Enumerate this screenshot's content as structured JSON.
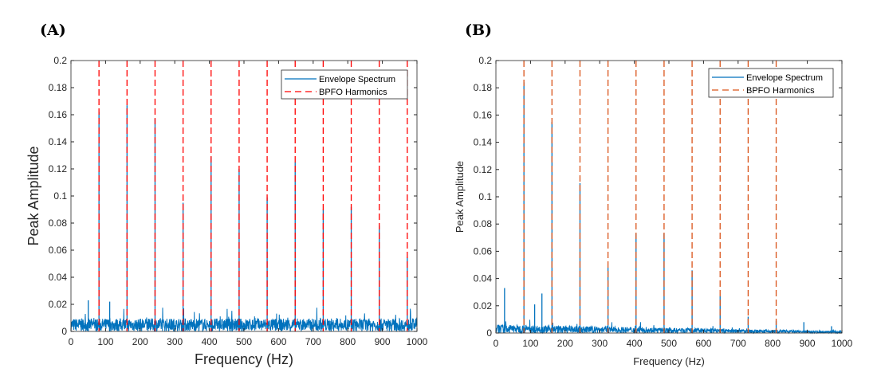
{
  "chart_data": [
    {
      "type": "line",
      "panel_label": "(A)",
      "xlabel": "Frequency (Hz)",
      "ylabel": "Peak Amplitude",
      "xlim": [
        0,
        1000
      ],
      "ylim": [
        0,
        0.2
      ],
      "xticks": [
        "0",
        "100",
        "200",
        "300",
        "400",
        "500",
        "600",
        "700",
        "800",
        "900",
        "1000"
      ],
      "yticks": [
        "0",
        "0.02",
        "0.04",
        "0.06",
        "0.08",
        "0.1",
        "0.12",
        "0.14",
        "0.16",
        "0.18",
        "0.2"
      ],
      "legend": {
        "position": "top-right",
        "entries": [
          "Envelope Spectrum",
          "BPFO Harmonics"
        ]
      },
      "harmonic_color": "#ff0000",
      "spectrum_color": "#0072bd",
      "noise_level": 0.006,
      "harmonics": [
        81,
        162,
        243,
        324,
        405,
        486,
        567,
        648,
        729,
        810,
        891,
        972
      ],
      "peaks": [
        [
          81,
          0.162
        ],
        [
          162,
          0.167
        ],
        [
          243,
          0.157
        ],
        [
          324,
          0.095
        ],
        [
          405,
          0.129
        ],
        [
          486,
          0.12
        ],
        [
          567,
          0.099
        ],
        [
          648,
          0.125
        ],
        [
          729,
          0.09
        ],
        [
          810,
          0.092
        ],
        [
          891,
          0.078
        ],
        [
          972,
          0.055
        ],
        [
          50,
          0.023
        ],
        [
          112,
          0.022
        ]
      ]
    },
    {
      "type": "line",
      "panel_label": "(B)",
      "xlabel": "Frequency (Hz)",
      "ylabel": "Peak Amplitude",
      "xlim": [
        0,
        1000
      ],
      "ylim": [
        0,
        0.2
      ],
      "xticks": [
        "0",
        "100",
        "200",
        "300",
        "400",
        "500",
        "600",
        "700",
        "800",
        "900",
        "1000"
      ],
      "yticks": [
        "0",
        "0.02",
        "0.04",
        "0.06",
        "0.08",
        "0.1",
        "0.12",
        "0.14",
        "0.16",
        "0.18",
        "0.2"
      ],
      "legend": {
        "position": "top-right",
        "entries": [
          "Envelope Spectrum",
          "BPFO Harmonics"
        ]
      },
      "harmonic_color": "#d95319",
      "spectrum_color": "#0072bd",
      "noise_level": 0.003,
      "harmonics": [
        81,
        162,
        243,
        324,
        405,
        486,
        567,
        648,
        729,
        810
      ],
      "peaks": [
        [
          81,
          0.184
        ],
        [
          162,
          0.155
        ],
        [
          243,
          0.11
        ],
        [
          324,
          0.048
        ],
        [
          405,
          0.073
        ],
        [
          486,
          0.073
        ],
        [
          567,
          0.046
        ],
        [
          648,
          0.027
        ],
        [
          729,
          0.012
        ],
        [
          810,
          0.009
        ],
        [
          890,
          0.008
        ],
        [
          970,
          0.005
        ],
        [
          25,
          0.033
        ],
        [
          133,
          0.029
        ],
        [
          112,
          0.021
        ]
      ]
    }
  ]
}
